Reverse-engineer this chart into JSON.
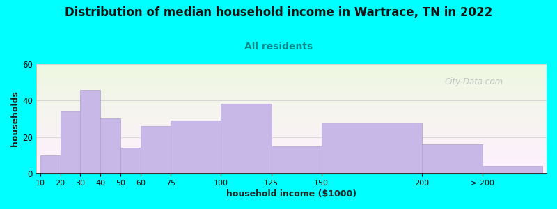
{
  "title": "Distribution of median household income in Wartrace, TN in 2022",
  "subtitle": "All residents",
  "xlabel": "household income ($1000)",
  "ylabel": "households",
  "background_outer": "#00FFFF",
  "bar_color": "#c8b8e8",
  "bar_edge_color": "#b0a0d0",
  "title_fontsize": 12,
  "subtitle_fontsize": 10,
  "subtitle_color": "#008888",
  "ylabel_fontsize": 9,
  "xlabel_fontsize": 9,
  "watermark": "City-Data.com",
  "values": [
    10,
    34,
    46,
    30,
    14,
    26,
    29,
    38,
    15,
    28,
    16,
    4
  ],
  "bar_lefts": [
    10,
    20,
    30,
    40,
    50,
    60,
    75,
    100,
    125,
    150,
    200,
    230
  ],
  "bar_widths": [
    10,
    10,
    10,
    10,
    10,
    15,
    25,
    25,
    25,
    50,
    30,
    30
  ],
  "ylim": [
    0,
    60
  ],
  "yticks": [
    0,
    20,
    40,
    60
  ],
  "xtick_labels": [
    "10",
    "20",
    "30",
    "40",
    "50",
    "60",
    "75",
    "100",
    "125",
    "150",
    "200",
    "> 200"
  ],
  "xlim_left": 8,
  "xlim_right": 262
}
